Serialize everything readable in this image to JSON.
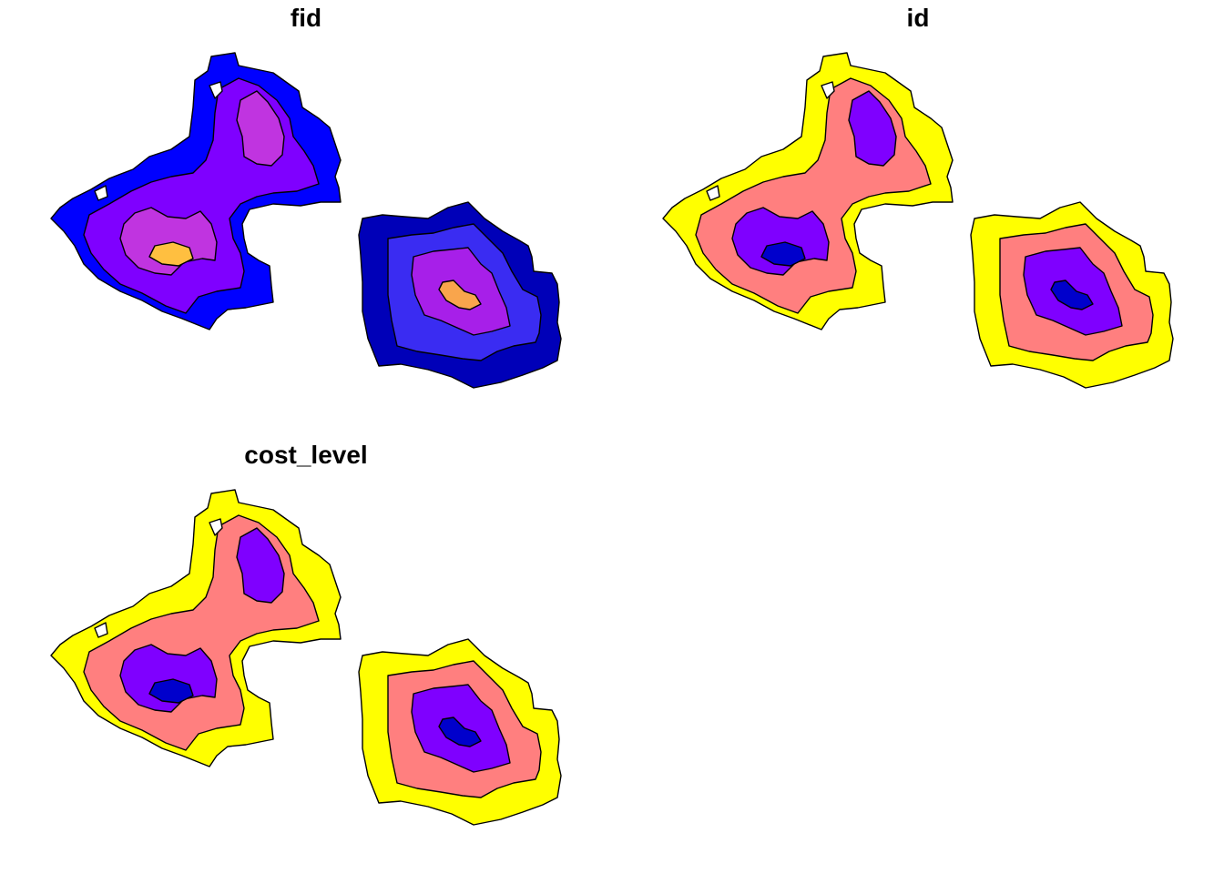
{
  "panels": [
    {
      "title": "fid",
      "level_colors": [
        "#0000FF",
        "#7F00FF",
        "#C034E0",
        "#FFBF40"
      ],
      "east_level_colors": [
        "#0000B8",
        "#3A2CF2",
        "#A71FE9",
        "#F9A54C"
      ]
    },
    {
      "title": "id",
      "level_colors": [
        "#FFFF00",
        "#FF7F7F",
        "#7F00FF",
        "#0000CC"
      ],
      "east_level_colors": [
        "#FFFF00",
        "#FF7F7F",
        "#7F00FF",
        "#0000CC"
      ]
    },
    {
      "title": "cost_level",
      "level_colors": [
        "#FFFF00",
        "#FF7F7F",
        "#7F00FF",
        "#0000CC"
      ],
      "east_level_colors": [
        "#FFFF00",
        "#FF7F7F",
        "#7F00FF",
        "#0000CC"
      ]
    }
  ]
}
